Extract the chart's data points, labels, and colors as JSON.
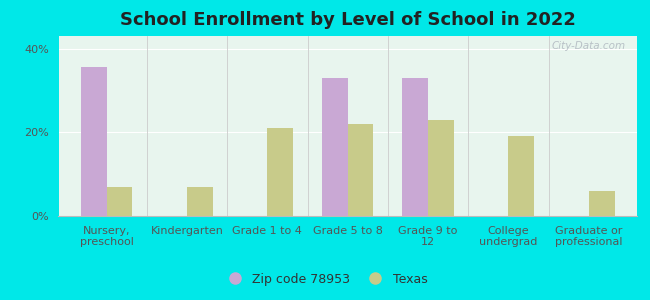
{
  "title": "School Enrollment by Level of School in 2022",
  "categories": [
    "Nursery,\npreschool",
    "Kindergarten",
    "Grade 1 to 4",
    "Grade 5 to 8",
    "Grade 9 to\n12",
    "College\nundergrad",
    "Graduate or\nprofessional"
  ],
  "zip_values": [
    35.5,
    0,
    0,
    33.0,
    33.0,
    0,
    0
  ],
  "texas_values": [
    7.0,
    7.0,
    21.0,
    22.0,
    23.0,
    19.0,
    6.0
  ],
  "zip_color": "#c9a8d4",
  "texas_color": "#c8cb8a",
  "bg_outer": "#00e8e8",
  "bg_plot": "#e8f5ee",
  "yticks": [
    0,
    20,
    40
  ],
  "ylim": [
    0,
    43
  ],
  "zip_label": "Zip code 78953",
  "texas_label": "Texas",
  "watermark": "City-Data.com",
  "title_fontsize": 13,
  "tick_fontsize": 8,
  "legend_fontsize": 9
}
